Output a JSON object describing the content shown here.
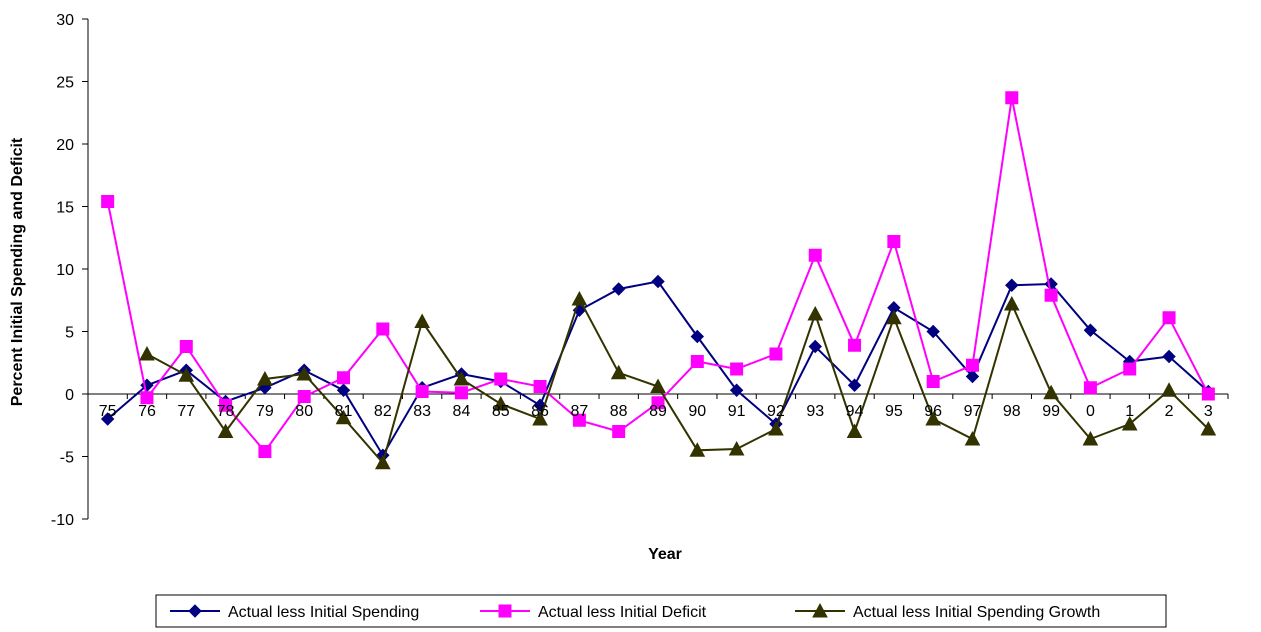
{
  "chart_data": {
    "type": "line",
    "title": "",
    "xlabel": "Year",
    "ylabel": "Percent Initial Spending and Deficit",
    "ylim": [
      -10,
      30
    ],
    "yticks": [
      -10,
      -5,
      0,
      5,
      10,
      15,
      20,
      25,
      30
    ],
    "categories": [
      "75",
      "76",
      "77",
      "78",
      "79",
      "80",
      "81",
      "82",
      "83",
      "84",
      "85",
      "86",
      "87",
      "88",
      "89",
      "90",
      "91",
      "92",
      "93",
      "94",
      "95",
      "96",
      "97",
      "98",
      "99",
      "0",
      "1",
      "2",
      "3"
    ],
    "grid": false,
    "legend_position": "bottom",
    "series": [
      {
        "name": "Actual less Initial Spending",
        "color": "#000080",
        "marker": "diamond",
        "values": [
          -2.0,
          0.7,
          1.9,
          -0.6,
          0.5,
          1.9,
          0.3,
          -4.9,
          0.5,
          1.6,
          1.0,
          -0.9,
          6.7,
          8.4,
          9.0,
          4.6,
          0.3,
          -2.4,
          3.8,
          0.7,
          6.9,
          5.0,
          1.4,
          8.7,
          8.8,
          5.1,
          2.6,
          3.0,
          0.2
        ]
      },
      {
        "name": "Actual less Initial Deficit",
        "color": "#ff00ff",
        "marker": "square",
        "values": [
          15.4,
          -0.3,
          3.8,
          -0.9,
          -4.6,
          -0.2,
          1.3,
          5.2,
          0.2,
          0.1,
          1.2,
          0.6,
          -2.1,
          -3.0,
          -0.7,
          2.6,
          2.0,
          3.2,
          11.1,
          3.9,
          12.2,
          1.0,
          2.3,
          23.7,
          7.9,
          0.5,
          2.0,
          6.1,
          0.0
        ]
      },
      {
        "name": "Actual less Initial Spending Growth",
        "color": "#333300",
        "marker": "triangle",
        "values": [
          null,
          3.2,
          1.5,
          -3.0,
          1.2,
          1.6,
          -1.9,
          -5.5,
          5.8,
          1.2,
          -0.8,
          -2.0,
          7.6,
          1.7,
          0.6,
          -4.5,
          -4.4,
          -2.8,
          6.4,
          -3.0,
          6.1,
          -2.0,
          -3.6,
          7.2,
          0.1,
          -3.6,
          -2.4,
          0.3,
          -2.8
        ]
      }
    ]
  }
}
